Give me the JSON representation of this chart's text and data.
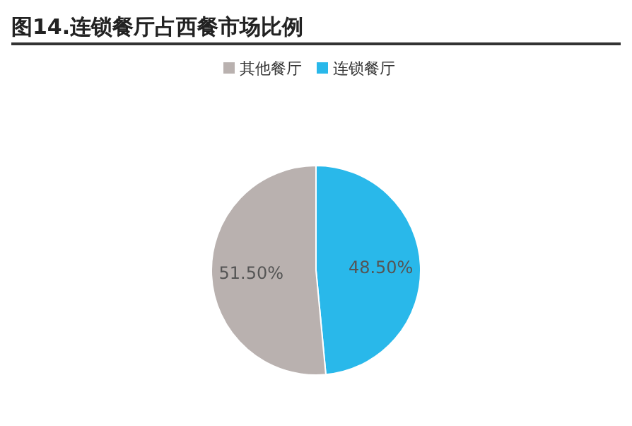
{
  "chart_data": {
    "type": "pie",
    "title": "图14.连锁餐厅占西餐市场比例",
    "categories": [
      "连锁餐厅",
      "其他餐厅"
    ],
    "values": [
      48.5,
      51.5
    ],
    "colors": [
      "#29b8ea",
      "#b9b1af"
    ],
    "value_labels": [
      "48.50%",
      "51.50%"
    ],
    "legend": "top"
  }
}
